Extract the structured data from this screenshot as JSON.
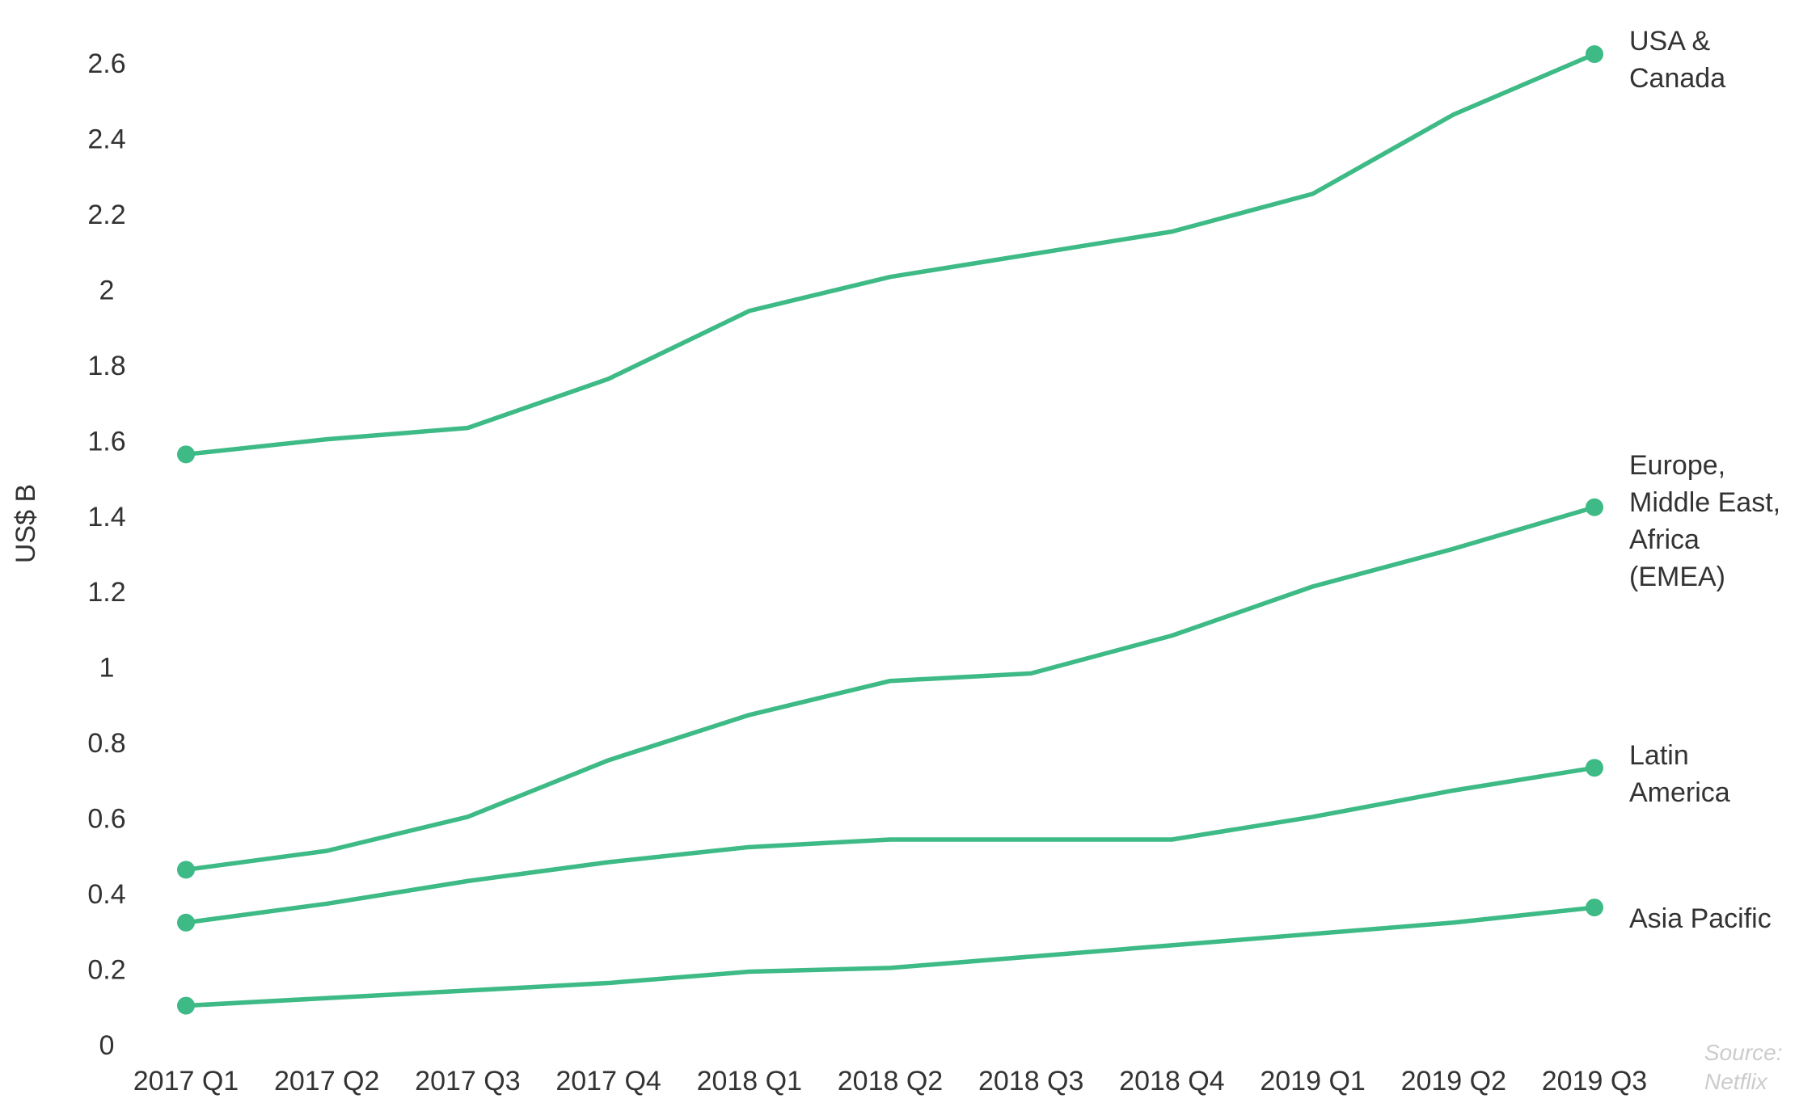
{
  "chart_data": {
    "type": "line",
    "y_label": "US$ B",
    "source": "Source: Netflix",
    "categories": [
      "2017 Q1",
      "2017 Q2",
      "2017 Q3",
      "2017 Q4",
      "2018 Q1",
      "2018 Q2",
      "2018 Q3",
      "2018 Q4",
      "2019 Q1",
      "2019 Q2",
      "2019 Q3"
    ],
    "series": [
      {
        "name": "USA & Canada",
        "color": "#3dba85",
        "values": [
          1.57,
          1.61,
          1.64,
          1.77,
          1.95,
          2.04,
          2.1,
          2.16,
          2.26,
          2.47,
          2.63
        ]
      },
      {
        "name": "Europe, Middle East, Africa (EMEA)",
        "color": "#3dba85",
        "values": [
          0.47,
          0.52,
          0.61,
          0.76,
          0.88,
          0.97,
          0.99,
          1.09,
          1.22,
          1.32,
          1.43
        ]
      },
      {
        "name": "Latin America",
        "color": "#3dba85",
        "values": [
          0.33,
          0.38,
          0.44,
          0.49,
          0.53,
          0.55,
          0.55,
          0.55,
          0.61,
          0.68,
          0.74
        ]
      },
      {
        "name": "Asia Pacific",
        "color": "#3dba85",
        "values": [
          0.11,
          0.13,
          0.15,
          0.17,
          0.2,
          0.21,
          0.24,
          0.27,
          0.3,
          0.33,
          0.37
        ]
      }
    ],
    "ylim": [
      0,
      2.6
    ],
    "yticks": [
      0,
      0.2,
      0.4,
      0.6,
      0.8,
      1,
      1.2,
      1.4,
      1.6,
      1.8,
      2,
      2.2,
      2.4,
      2.6
    ],
    "grid": false
  }
}
